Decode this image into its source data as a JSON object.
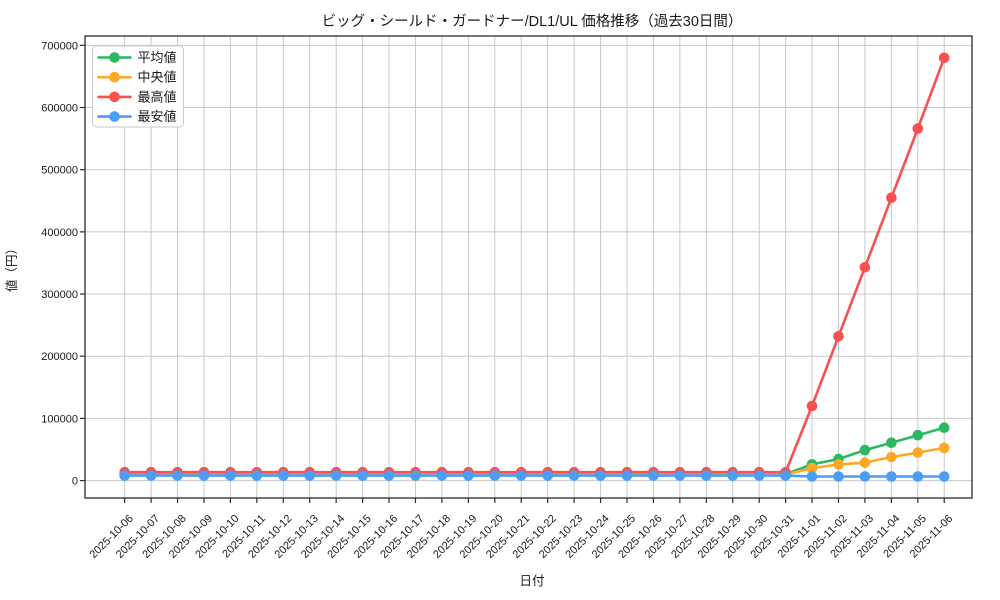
{
  "figure": {
    "background": "#ffffff"
  },
  "chart_data": {
    "type": "line",
    "title": "ビッグ・シールド・ガードナー/DL1/UL 価格推移（過去30日間）",
    "xlabel": "日付",
    "ylabel": "値（円）",
    "x": [
      "2025-10-06",
      "2025-10-07",
      "2025-10-08",
      "2025-10-09",
      "2025-10-10",
      "2025-10-11",
      "2025-10-12",
      "2025-10-13",
      "2025-10-14",
      "2025-10-15",
      "2025-10-16",
      "2025-10-17",
      "2025-10-18",
      "2025-10-19",
      "2025-10-20",
      "2025-10-21",
      "2025-10-22",
      "2025-10-23",
      "2025-10-24",
      "2025-10-25",
      "2025-10-26",
      "2025-10-27",
      "2025-10-28",
      "2025-10-29",
      "2025-10-30",
      "2025-10-31",
      "2025-11-01",
      "2025-11-02",
      "2025-11-03",
      "2025-11-04",
      "2025-11-05",
      "2025-11-06"
    ],
    "series": [
      {
        "key": "average",
        "name": "平均値",
        "color": "#2bb863",
        "values": [
          10500,
          10500,
          10500,
          10500,
          10500,
          10500,
          10500,
          10500,
          10500,
          10500,
          10500,
          10500,
          10500,
          10500,
          10500,
          10500,
          10500,
          10500,
          10500,
          10500,
          10500,
          10500,
          10500,
          10500,
          10500,
          10500,
          26000,
          34500,
          49000,
          61000,
          73000,
          85000
        ]
      },
      {
        "key": "median",
        "name": "中央値",
        "color": "#ffa726",
        "values": [
          9900,
          9900,
          9900,
          9900,
          9900,
          9900,
          9900,
          9900,
          9900,
          9900,
          9900,
          9900,
          9900,
          9900,
          9900,
          9900,
          9900,
          9900,
          9900,
          9900,
          9900,
          9900,
          9900,
          9900,
          9900,
          9900,
          20000,
          26000,
          29000,
          38000,
          45000,
          52500
        ]
      },
      {
        "key": "highest",
        "name": "最高値",
        "color": "#f8514f",
        "values": [
          13500,
          13500,
          13500,
          13500,
          13500,
          13500,
          13500,
          13500,
          13500,
          13500,
          13500,
          13500,
          13500,
          13500,
          13500,
          13500,
          13500,
          13500,
          13500,
          13500,
          13500,
          13500,
          13500,
          13500,
          13500,
          13500,
          120000,
          232000,
          343000,
          455000,
          566000,
          680000
        ]
      },
      {
        "key": "lowest",
        "name": "最安値",
        "color": "#4a9ef8",
        "values": [
          8000,
          8000,
          8000,
          8000,
          8000,
          8000,
          8000,
          8000,
          8000,
          8000,
          8000,
          8000,
          8000,
          8000,
          8000,
          8000,
          8000,
          8000,
          8000,
          8000,
          8000,
          8000,
          8000,
          8000,
          8000,
          8000,
          6500,
          6500,
          6500,
          6500,
          6500,
          6500
        ]
      }
    ],
    "yticks": [
      0,
      100000,
      200000,
      300000,
      400000,
      500000,
      600000,
      700000
    ],
    "ylim": [
      -28000,
      715000
    ],
    "grid": true,
    "legend_position": "upper left",
    "grid_color": "#c8c8c8",
    "axis_color": "#2b2b2b",
    "text_color": "#1a1a1a"
  }
}
